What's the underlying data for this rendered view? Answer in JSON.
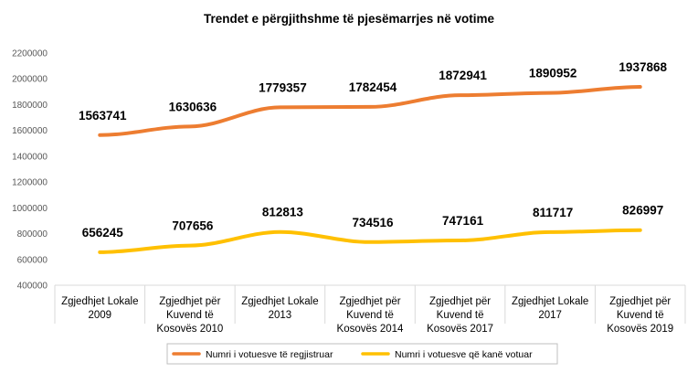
{
  "chart_data": {
    "type": "line",
    "title": "Trendet e përgjithshme të pjesëmarrjes në votime",
    "xlabel": "",
    "ylabel": "",
    "categories": [
      [
        "Zgjedhjet Lokale",
        "2009"
      ],
      [
        "Zgjedhjet për",
        "Kuvend të",
        "Kosovës 2010"
      ],
      [
        "Zgjedhjet Lokale",
        "2013"
      ],
      [
        "Zgjedhjet për",
        "Kuvend të",
        "Kosovës 2014"
      ],
      [
        "Zgjedhjet për",
        "Kuvend të",
        "Kosovës 2017"
      ],
      [
        "Zgjedhjet Lokale",
        "2017"
      ],
      [
        "Zgjedhjet për",
        "Kuvend të",
        "Kosovës 2019"
      ]
    ],
    "ylim": [
      400000,
      2200000
    ],
    "yticks": [
      400000,
      600000,
      800000,
      1000000,
      1200000,
      1400000,
      1600000,
      1800000,
      2000000,
      2200000
    ],
    "grid": false,
    "legend_position": "bottom",
    "series": [
      {
        "name": "Numri i votuesve të regjistruar",
        "color": "#ED7D31",
        "values": [
          1563741,
          1630636,
          1779357,
          1782454,
          1872941,
          1890952,
          1937868
        ]
      },
      {
        "name": "Numri i votuesve që kanë votuar",
        "color": "#FFC000",
        "values": [
          656245,
          707656,
          812813,
          734516,
          747161,
          811717,
          826997
        ]
      }
    ]
  }
}
